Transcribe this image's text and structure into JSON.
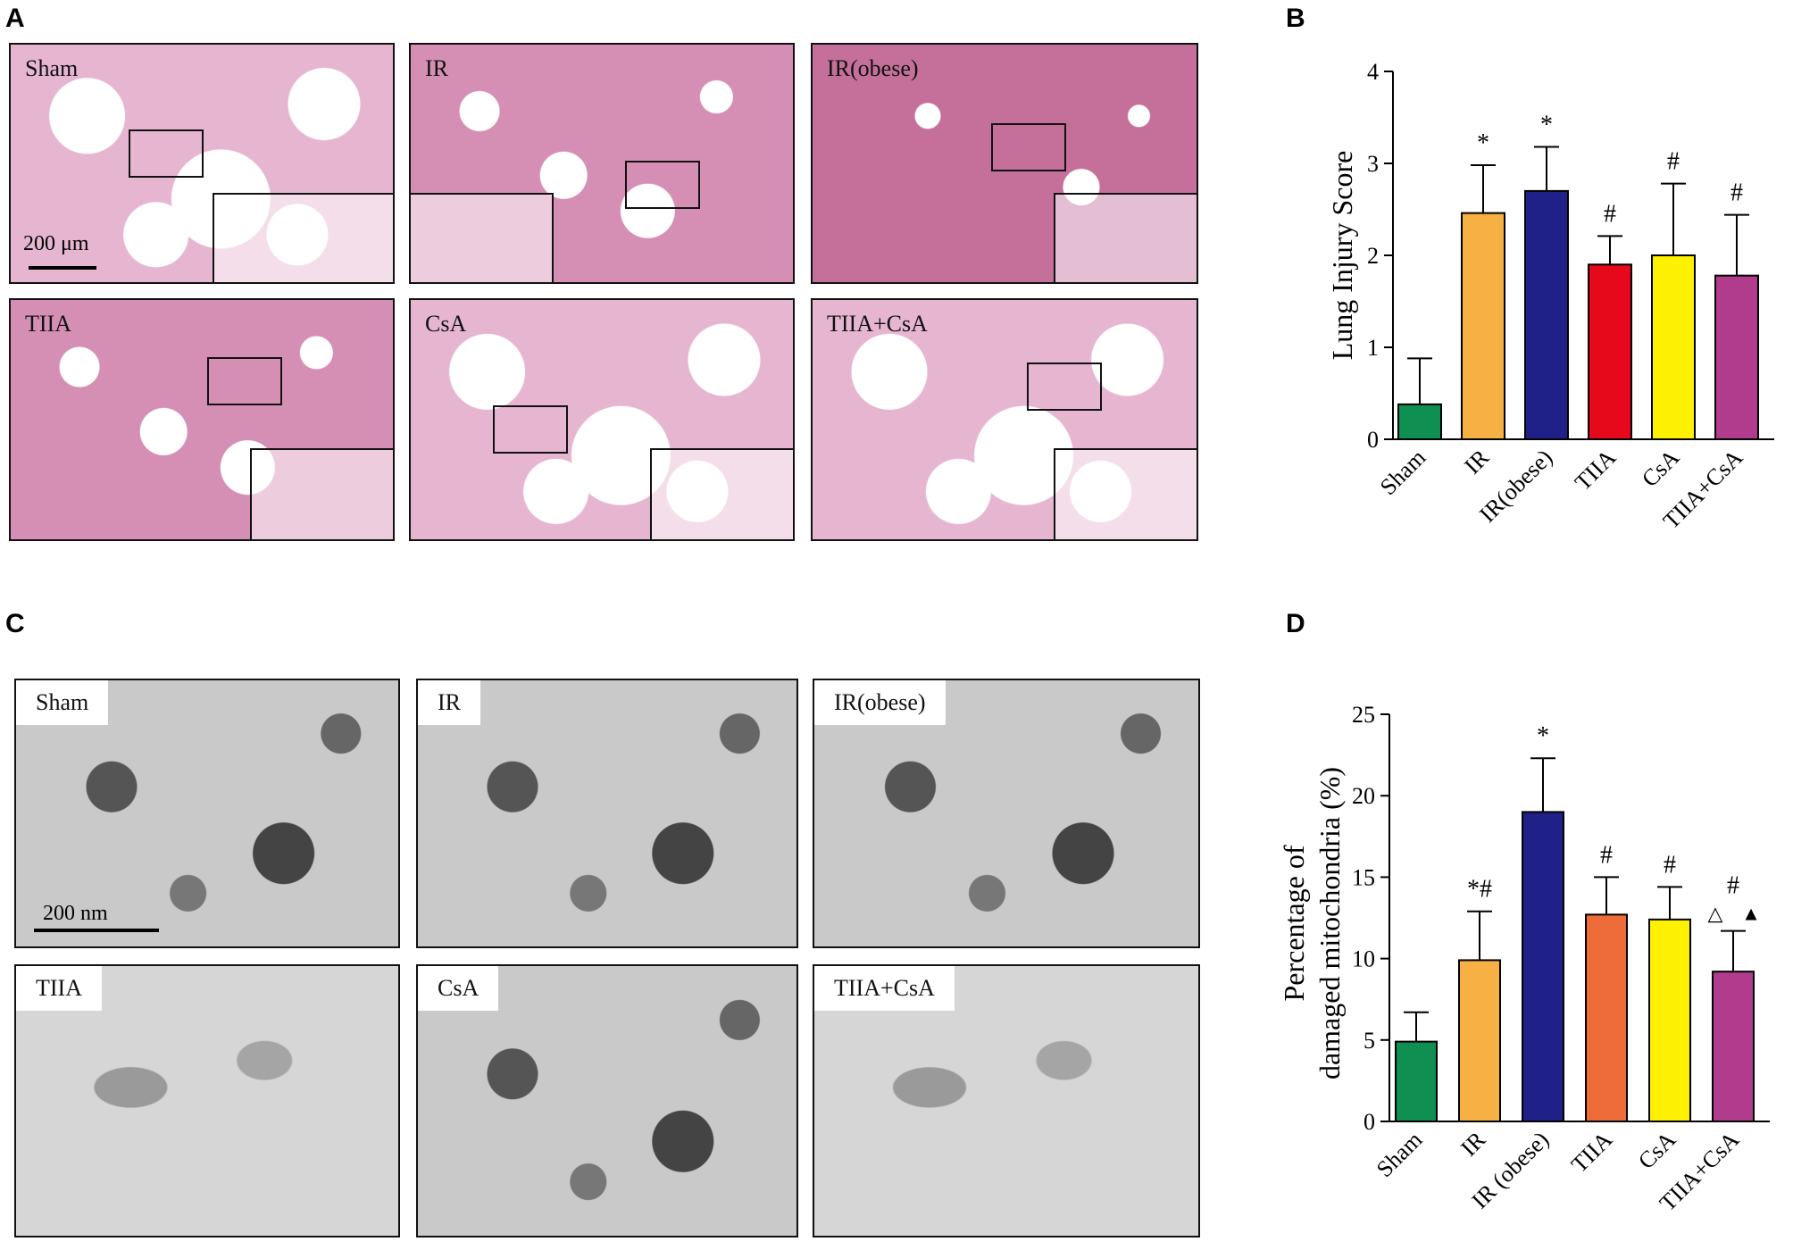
{
  "panels": {
    "a": "A",
    "b": "B",
    "c": "C",
    "d": "D"
  },
  "histology": {
    "labels": [
      "Sham",
      "IR",
      "IR(obese)",
      "TIIA",
      "CsA",
      "TIIA+CsA"
    ],
    "scale_label": "200 μm"
  },
  "em": {
    "labels": [
      "Sham",
      "IR",
      "IR(obese)",
      "TIIA",
      "CsA",
      "TIIA+CsA"
    ],
    "scale_label": "200 nm"
  },
  "chart_data": [
    {
      "type": "bar",
      "panel": "B",
      "categories": [
        "Sham",
        "IR",
        "IR(obese)",
        "TIIA",
        "CsA",
        "TIIA+CsA"
      ],
      "values": [
        0.38,
        2.46,
        2.7,
        1.9,
        2.0,
        1.78
      ],
      "errors": [
        0.5,
        0.52,
        0.48,
        0.31,
        0.78,
        0.66
      ],
      "colors": [
        "#0f8f52",
        "#f6b043",
        "#1f2189",
        "#e6081b",
        "#fdf000",
        "#b13b8d"
      ],
      "annotations": [
        "",
        "*",
        "*",
        "#",
        "#",
        "#"
      ],
      "ylabel": "Lung Injury Score",
      "yticks": [
        "0",
        "1",
        "2",
        "3",
        "4"
      ],
      "ylim": [
        0,
        4
      ]
    },
    {
      "type": "bar",
      "panel": "D",
      "categories": [
        "Sham",
        "IR",
        "IR (obese)",
        "TIIA",
        "CsA",
        "TIIA+CsA"
      ],
      "values": [
        4.9,
        9.9,
        19.0,
        12.7,
        12.4,
        9.2
      ],
      "errors": [
        1.8,
        3.0,
        3.3,
        2.3,
        2.0,
        2.5
      ],
      "colors": [
        "#0f8f52",
        "#f6b043",
        "#1f2189",
        "#ee6b3a",
        "#fdf000",
        "#b13b8d"
      ],
      "annotations": [
        "",
        "*#",
        "*",
        "#",
        "#",
        "#"
      ],
      "extra_marks": [
        "△",
        "▲"
      ],
      "ylabel_line1": "Percentage of",
      "ylabel_line2": "damaged mitochondria (%)",
      "yticks": [
        "0",
        "5",
        "10",
        "15",
        "20",
        "25"
      ],
      "ylim": [
        0,
        25
      ]
    }
  ]
}
